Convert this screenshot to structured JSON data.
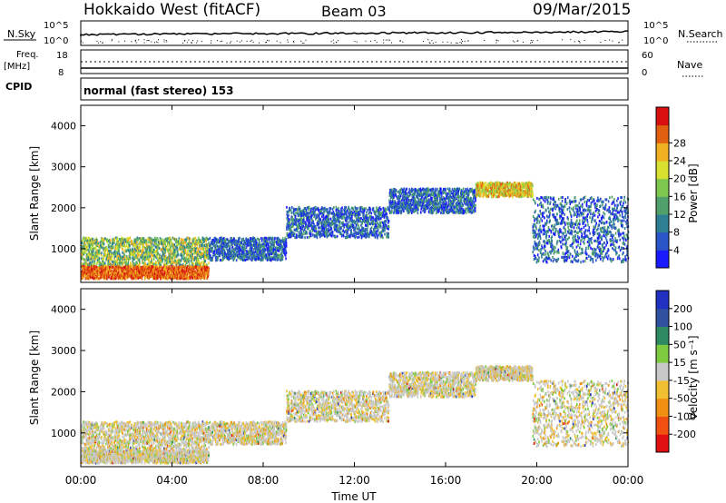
{
  "header": {
    "station": "Hokkaido West (fitACF)",
    "beam": "Beam 03",
    "date": "09/Mar/2015"
  },
  "top_panels": {
    "nsky_label": "N.Sky",
    "nsearch_label": "N.Search",
    "log_ticks": [
      "10^5",
      "10^0"
    ],
    "freq_label": "Freq.",
    "freq_unit": "[MHz]",
    "freq_ticks": [
      "18",
      "8"
    ],
    "nave_label": "Nave",
    "nave_ticks": [
      "60",
      "0"
    ],
    "cpid_label": "CPID",
    "cpid_text": "normal (fast stereo) 153"
  },
  "chart_data": [
    {
      "type": "heatmap",
      "panel": "power",
      "ylabel": "Slant Range [km]",
      "xlabel": "",
      "xlim": [
        "00:00",
        "00:00"
      ],
      "xticks": [
        "00:00",
        "04:00",
        "08:00",
        "12:00",
        "16:00",
        "20:00",
        "00:00"
      ],
      "ylim": [
        180,
        4500
      ],
      "yticks": [
        1000,
        2000,
        3000,
        4000
      ],
      "colorbar": {
        "label": "Power [dB]",
        "ticks": [
          4,
          8,
          12,
          16,
          20,
          24,
          28
        ],
        "colors": [
          "#1a1aff",
          "#2a55c8",
          "#2e7e94",
          "#4fa06a",
          "#7ec850",
          "#d8e030",
          "#f0b020",
          "#e06010",
          "#d81010"
        ]
      },
      "bands": [
        {
          "t_start": 0.0,
          "t_end": 5.6,
          "range_low": 600,
          "range_high": 1300,
          "level": "low-mid"
        },
        {
          "t_start": 0.0,
          "t_end": 5.6,
          "range_low": 300,
          "range_high": 600,
          "level": "high"
        },
        {
          "t_start": 5.6,
          "t_end": 9.0,
          "range_low": 750,
          "range_high": 1300,
          "level": "low"
        },
        {
          "t_start": 9.0,
          "t_end": 13.5,
          "range_low": 1300,
          "range_high": 2050,
          "level": "low"
        },
        {
          "t_start": 13.5,
          "t_end": 17.3,
          "range_low": 1900,
          "range_high": 2500,
          "level": "low"
        },
        {
          "t_start": 17.3,
          "t_end": 19.8,
          "range_low": 2300,
          "range_high": 2650,
          "level": "mid-high"
        },
        {
          "t_start": 19.8,
          "t_end": 24.0,
          "range_low": 700,
          "range_high": 2300,
          "level": "low"
        }
      ]
    },
    {
      "type": "heatmap",
      "panel": "velocity",
      "ylabel": "Slant Range [km]",
      "xlabel": "Time UT",
      "xlim": [
        "00:00",
        "00:00"
      ],
      "xticks": [
        "00:00",
        "04:00",
        "08:00",
        "12:00",
        "16:00",
        "20:00",
        "00:00"
      ],
      "ylim": [
        180,
        4500
      ],
      "yticks": [
        1000,
        2000,
        3000,
        4000
      ],
      "colorbar": {
        "label": "Velocity [m s⁻¹]",
        "ticks": [
          200,
          100,
          50,
          15,
          -15,
          -50,
          -100,
          -200
        ],
        "colors": [
          "#2030c0",
          "#3050a0",
          "#2e8a60",
          "#7ecb40",
          "#c8c8c8",
          "#f0c030",
          "#f09010",
          "#f05010",
          "#e01010"
        ]
      }
    }
  ]
}
